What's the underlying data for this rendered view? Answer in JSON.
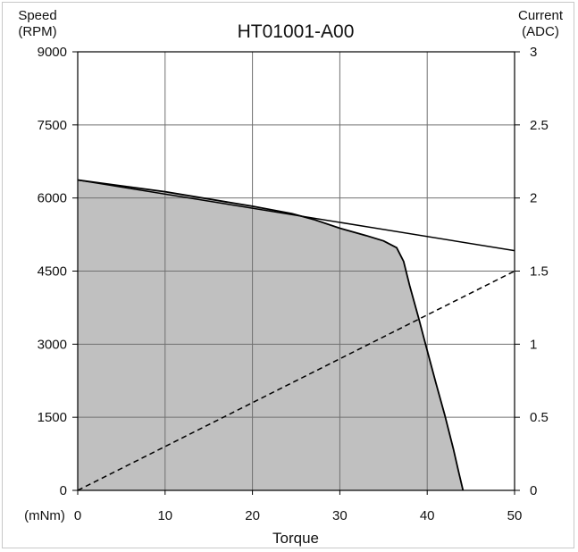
{
  "chart_data": {
    "type": "area",
    "title": "HT01001-A00",
    "xlabel": "Torque",
    "x_unit_label": "(mNm)",
    "ylabel_left": [
      "Speed",
      "(RPM)"
    ],
    "ylabel_right": [
      "Current",
      "(ADC)"
    ],
    "xlim": [
      0,
      50
    ],
    "ylim_left": [
      0,
      9000
    ],
    "ylim_right": [
      0,
      3
    ],
    "x_ticks": [
      "0",
      "10",
      "20",
      "30",
      "40",
      "50"
    ],
    "y_ticks_left": [
      "0",
      "1500",
      "3000",
      "4500",
      "6000",
      "7500",
      "9000"
    ],
    "y_ticks_right": [
      "0",
      "0.5",
      "1",
      "1.5",
      "2",
      "2.5",
      "3"
    ],
    "grid": true,
    "series": [
      {
        "style": "area",
        "axis": "left",
        "color": "#c0c0c0",
        "x": [
          0,
          10,
          20,
          24.5,
          27,
          30,
          33,
          35,
          36.5,
          37.3,
          38,
          39,
          40,
          41,
          42,
          43,
          43.6,
          44.1
        ],
        "y": [
          6370,
          6130,
          5830,
          5680,
          5560,
          5380,
          5230,
          5120,
          4980,
          4700,
          4200,
          3550,
          2870,
          2200,
          1550,
          850,
          380,
          0
        ]
      },
      {
        "style": "line",
        "axis": "left",
        "color": "#000000",
        "x": [
          0,
          50
        ],
        "y": [
          6370,
          4920
        ]
      },
      {
        "style": "dashed",
        "axis": "right",
        "color": "#000000",
        "x": [
          0,
          50
        ],
        "y": [
          0,
          1.5
        ]
      }
    ]
  }
}
